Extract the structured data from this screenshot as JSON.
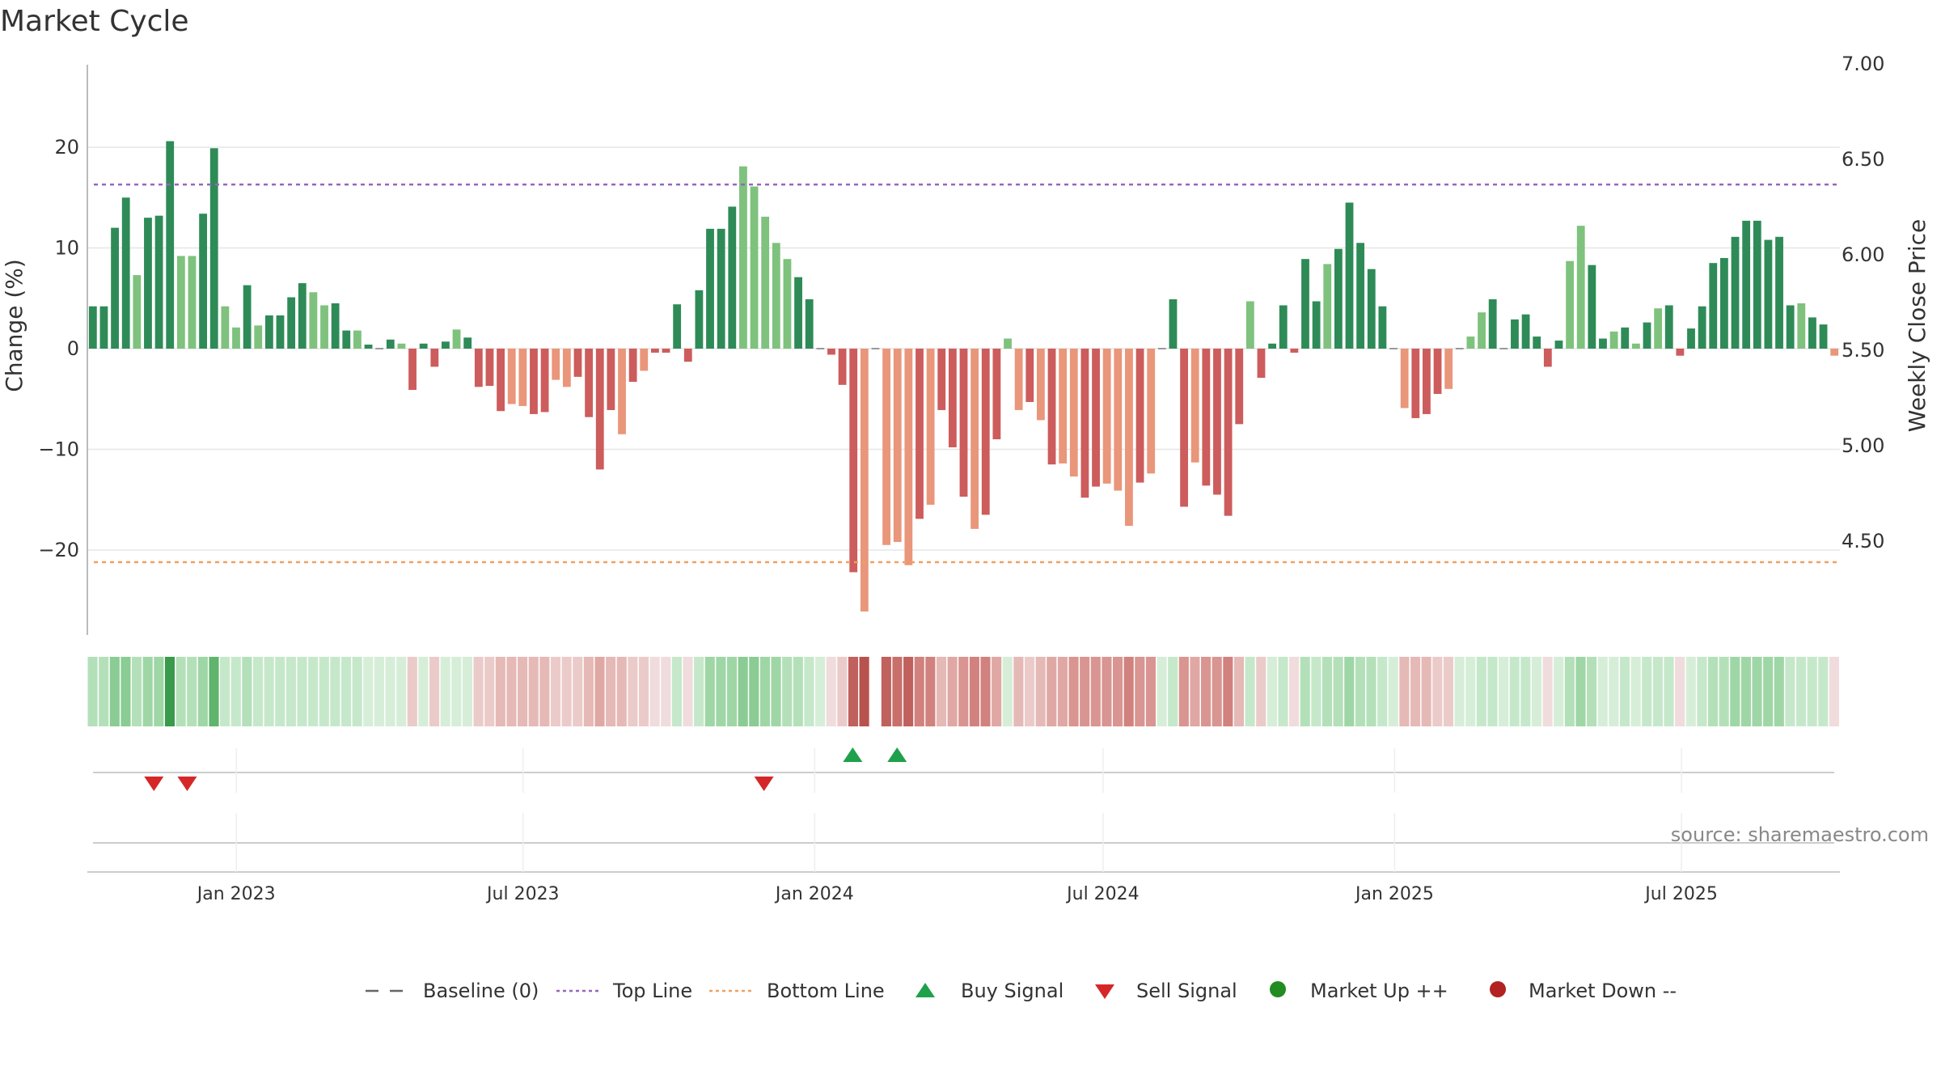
{
  "title": "Market Cycle",
  "source": "source: sharemaestro.com",
  "colors": {
    "up_strong": "#2e8b57",
    "up_light": "#7ec27e",
    "down_strong": "#cd5c5c",
    "down_light": "#e9967a",
    "top_line": "#9467bd",
    "bottom_line": "#f0a060",
    "buy": "#1fa04a",
    "sell": "#d62728",
    "market_up": "#228b22",
    "market_down": "#b22222",
    "baseline": "#666666"
  },
  "legend": [
    {
      "key": "baseline",
      "label": "Baseline (0)",
      "icon": "dash-line-icon"
    },
    {
      "key": "top",
      "label": "Top Line",
      "icon": "dotted-line-icon"
    },
    {
      "key": "bottom",
      "label": "Bottom Line",
      "icon": "dotted-line-icon"
    },
    {
      "key": "buy",
      "label": "Buy Signal",
      "icon": "triangle-up-icon"
    },
    {
      "key": "sell",
      "label": "Sell Signal",
      "icon": "triangle-down-icon"
    },
    {
      "key": "mup",
      "label": "Market Up ++",
      "icon": "circle-icon"
    },
    {
      "key": "mdown",
      "label": "Market Down --",
      "icon": "circle-icon"
    }
  ],
  "chart_data": {
    "type": "bar",
    "ylabel": "Change (%)",
    "ylabel_right": "Weekly Close Price",
    "ylim": [
      -28,
      28
    ],
    "yticks": [
      20,
      10,
      0,
      -10,
      -20
    ],
    "ytick_labels": [
      "20",
      "10",
      "0",
      "−10",
      "−20"
    ],
    "ylim_right": [
      4.18,
      7.1
    ],
    "yticks_right": [
      7.0,
      6.5,
      6.0,
      5.5,
      5.0,
      4.5
    ],
    "ytick_labels_right": [
      "7.00",
      "6.50",
      "6.00",
      "5.50",
      "5.00",
      "4.50"
    ],
    "top_line": 16.3,
    "bottom_line": -21.2,
    "x_start": "2022-09-29",
    "x_end": "2025-10-09",
    "x_ticks": [
      {
        "date": "2023-01-01",
        "label": "Jan 2023"
      },
      {
        "date": "2023-07-01",
        "label": "Jul 2023"
      },
      {
        "date": "2024-01-01",
        "label": "Jan 2024"
      },
      {
        "date": "2024-07-01",
        "label": "Jul 2024"
      },
      {
        "date": "2025-01-01",
        "label": "Jan 2025"
      },
      {
        "date": "2025-07-01",
        "label": "Jul 2025"
      }
    ],
    "values": [
      4.2,
      4.2,
      12,
      15,
      7.3,
      13,
      13.2,
      20.6,
      9.2,
      9.2,
      13.4,
      19.9,
      4.2,
      2.1,
      6.3,
      2.3,
      3.3,
      3.3,
      5.1,
      6.5,
      5.6,
      4.3,
      4.5,
      1.8,
      1.8,
      0.4,
      0,
      0.9,
      0.5,
      -4.1,
      0.5,
      -1.8,
      0.7,
      1.9,
      1.1,
      -3.8,
      -3.7,
      -6.2,
      -5.5,
      -5.7,
      -6.5,
      -6.3,
      -3.1,
      -3.8,
      -2.8,
      -6.8,
      -12,
      -6.1,
      -8.5,
      -3.3,
      -2.2,
      -0.4,
      -0.4,
      4.4,
      -1.3,
      5.8,
      11.9,
      11.9,
      14.1,
      18.1,
      16.1,
      13.1,
      10.5,
      8.9,
      7.1,
      4.9,
      0,
      -0.6,
      -3.6,
      -22.2,
      -26.1,
      0,
      -19.5,
      -19.2,
      -21.5,
      -16.9,
      -15.5,
      -6.1,
      -9.8,
      -14.7,
      -17.9,
      -16.5,
      -9,
      1,
      -6.1,
      -5.3,
      -7.1,
      -11.5,
      -11.4,
      -12.7,
      -14.8,
      -13.7,
      -13.4,
      -14.1,
      -17.6,
      -13.3,
      -12.4,
      0,
      4.9,
      -15.7,
      -11.3,
      -13.6,
      -14.5,
      -16.6,
      -7.5,
      4.7,
      -2.9,
      0.5,
      4.3,
      -0.4,
      8.9,
      4.7,
      8.4,
      9.9,
      14.5,
      10.5,
      7.9,
      4.2,
      0,
      -5.9,
      -6.9,
      -6.5,
      -4.5,
      -4.0,
      0,
      1.2,
      3.6,
      4.9,
      0,
      2.9,
      3.4,
      1.2,
      -1.8,
      0.8,
      8.7,
      12.2,
      8.3,
      1,
      1.7,
      2.1,
      0.5,
      2.6,
      4,
      4.3,
      -0.7,
      2,
      4.2,
      8.5,
      9,
      11.1,
      12.7,
      12.7,
      10.8,
      11.1,
      4.3,
      4.5,
      3.1,
      2.4,
      -0.7
    ],
    "styles": "SSSSLSSSLLSSLLSLSSSSLLSSLSSSLSSSSLSSSSLLSSLLSSSSLSLSSSSSSSSLLLLLSSSSSSLLLLLSLSSSLSSLLSLSLLSSLLLSLSSSLSSSSLSSSSSSLSSSSSLLSSSLLLLSSSSSSSLLSSLSLSLSSSSSSSSSSSSLSSLLS",
    "buy_signals": [
      "2024-01-25",
      "2024-02-22"
    ],
    "sell_signals": [
      "2022-11-10",
      "2022-12-01",
      "2023-11-30"
    ],
    "heat_strip": {
      "gap_index": 71,
      "intensity": [
        2,
        2,
        4,
        4,
        2,
        3,
        3,
        8,
        2,
        2,
        3,
        6,
        1,
        1,
        2,
        1,
        1,
        1,
        1,
        1,
        1,
        1,
        1,
        1,
        1,
        0,
        0,
        0,
        0,
        1,
        0,
        1,
        0,
        0,
        0,
        1,
        1,
        2,
        2,
        2,
        2,
        2,
        1,
        1,
        1,
        2,
        3,
        2,
        2,
        1,
        1,
        0,
        0,
        1,
        0,
        1,
        3,
        3,
        3,
        4,
        4,
        3,
        3,
        2,
        2,
        1,
        0,
        0,
        1,
        7,
        8,
        0,
        7,
        6,
        7,
        5,
        5,
        2,
        3,
        4,
        5,
        5,
        3,
        0,
        2,
        1,
        2,
        3,
        3,
        4,
        4,
        4,
        4,
        4,
        5,
        4,
        4,
        0,
        1,
        4,
        3,
        4,
        4,
        5,
        2,
        1,
        1,
        0,
        1,
        0,
        2,
        1,
        2,
        2,
        3,
        2,
        2,
        1,
        0,
        2,
        2,
        2,
        1,
        1,
        0,
        0,
        1,
        1,
        0,
        1,
        1,
        0,
        0,
        0,
        2,
        3,
        2,
        0,
        0,
        1,
        0,
        1,
        1,
        1,
        0,
        0,
        1,
        2,
        2,
        3,
        3,
        3,
        3,
        3,
        1,
        1,
        1,
        1,
        0
      ]
    }
  }
}
